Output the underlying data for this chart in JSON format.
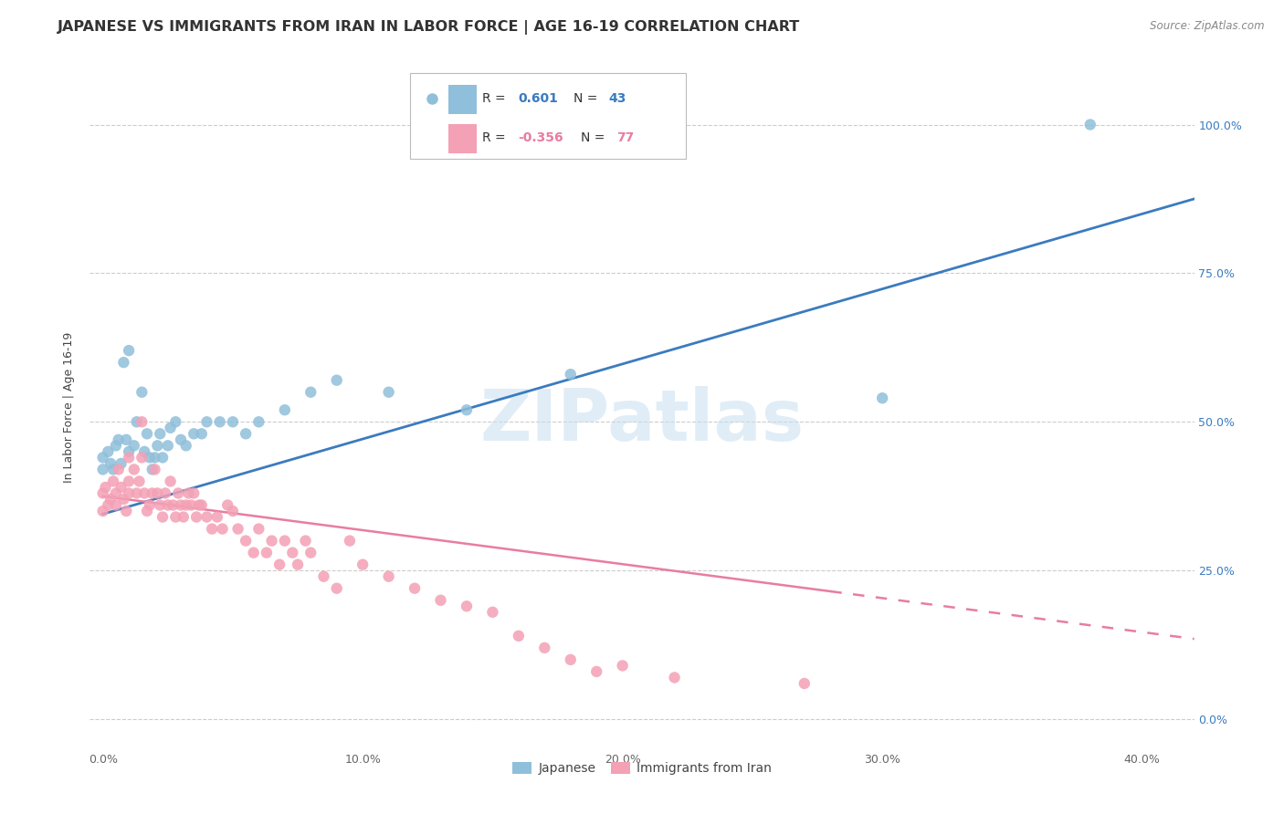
{
  "title": "JAPANESE VS IMMIGRANTS FROM IRAN IN LABOR FORCE | AGE 16-19 CORRELATION CHART",
  "source": "Source: ZipAtlas.com",
  "xlabel_ticks": [
    "0.0%",
    "10.0%",
    "20.0%",
    "30.0%",
    "40.0%"
  ],
  "xlabel_tick_vals": [
    0.0,
    0.1,
    0.2,
    0.3,
    0.4
  ],
  "ylabel": "In Labor Force | Age 16-19",
  "ylabel_ticks": [
    "0.0%",
    "25.0%",
    "50.0%",
    "75.0%",
    "100.0%"
  ],
  "ylabel_tick_vals": [
    0.0,
    0.25,
    0.5,
    0.75,
    1.0
  ],
  "xlim": [
    -0.005,
    0.42
  ],
  "ylim": [
    -0.05,
    1.1
  ],
  "blue_R": 0.601,
  "blue_N": 43,
  "pink_R": -0.356,
  "pink_N": 77,
  "blue_color": "#8fbfda",
  "pink_color": "#f4a0b5",
  "blue_line_color": "#3b7bbf",
  "pink_line_color": "#e87da0",
  "watermark": "ZIPatlas",
  "legend_label_blue": "Japanese",
  "legend_label_pink": "Immigrants from Iran",
  "blue_line_x0": 0.0,
  "blue_line_y0": 0.345,
  "blue_line_x1": 0.42,
  "blue_line_y1": 0.875,
  "pink_line_x0": 0.0,
  "pink_line_y0": 0.375,
  "pink_line_x1_solid": 0.28,
  "pink_line_y1_solid": 0.215,
  "pink_line_x1_dash": 0.42,
  "pink_line_y1_dash": 0.12,
  "grid_color": "#cccccc",
  "background_color": "#ffffff",
  "title_fontsize": 11.5,
  "axis_label_fontsize": 9,
  "tick_fontsize": 9,
  "blue_scatter_x": [
    0.0,
    0.0,
    0.002,
    0.003,
    0.004,
    0.005,
    0.006,
    0.007,
    0.008,
    0.009,
    0.01,
    0.01,
    0.012,
    0.013,
    0.015,
    0.016,
    0.017,
    0.018,
    0.019,
    0.02,
    0.021,
    0.022,
    0.023,
    0.025,
    0.026,
    0.028,
    0.03,
    0.032,
    0.035,
    0.038,
    0.04,
    0.045,
    0.05,
    0.055,
    0.06,
    0.07,
    0.08,
    0.09,
    0.11,
    0.14,
    0.18,
    0.3,
    0.38
  ],
  "blue_scatter_y": [
    0.44,
    0.42,
    0.45,
    0.43,
    0.42,
    0.46,
    0.47,
    0.43,
    0.6,
    0.47,
    0.62,
    0.45,
    0.46,
    0.5,
    0.55,
    0.45,
    0.48,
    0.44,
    0.42,
    0.44,
    0.46,
    0.48,
    0.44,
    0.46,
    0.49,
    0.5,
    0.47,
    0.46,
    0.48,
    0.48,
    0.5,
    0.5,
    0.5,
    0.48,
    0.5,
    0.52,
    0.55,
    0.57,
    0.55,
    0.52,
    0.58,
    0.54,
    1.0
  ],
  "pink_scatter_x": [
    0.0,
    0.0,
    0.001,
    0.002,
    0.003,
    0.004,
    0.005,
    0.005,
    0.006,
    0.007,
    0.008,
    0.009,
    0.01,
    0.01,
    0.01,
    0.012,
    0.013,
    0.014,
    0.015,
    0.015,
    0.016,
    0.017,
    0.018,
    0.019,
    0.02,
    0.021,
    0.022,
    0.023,
    0.024,
    0.025,
    0.026,
    0.027,
    0.028,
    0.029,
    0.03,
    0.031,
    0.032,
    0.033,
    0.034,
    0.035,
    0.036,
    0.037,
    0.038,
    0.04,
    0.042,
    0.044,
    0.046,
    0.048,
    0.05,
    0.052,
    0.055,
    0.058,
    0.06,
    0.063,
    0.065,
    0.068,
    0.07,
    0.073,
    0.075,
    0.078,
    0.08,
    0.085,
    0.09,
    0.095,
    0.1,
    0.11,
    0.12,
    0.13,
    0.14,
    0.15,
    0.16,
    0.17,
    0.18,
    0.19,
    0.2,
    0.22,
    0.27
  ],
  "pink_scatter_y": [
    0.38,
    0.35,
    0.39,
    0.36,
    0.37,
    0.4,
    0.38,
    0.36,
    0.42,
    0.39,
    0.37,
    0.35,
    0.44,
    0.4,
    0.38,
    0.42,
    0.38,
    0.4,
    0.5,
    0.44,
    0.38,
    0.35,
    0.36,
    0.38,
    0.42,
    0.38,
    0.36,
    0.34,
    0.38,
    0.36,
    0.4,
    0.36,
    0.34,
    0.38,
    0.36,
    0.34,
    0.36,
    0.38,
    0.36,
    0.38,
    0.34,
    0.36,
    0.36,
    0.34,
    0.32,
    0.34,
    0.32,
    0.36,
    0.35,
    0.32,
    0.3,
    0.28,
    0.32,
    0.28,
    0.3,
    0.26,
    0.3,
    0.28,
    0.26,
    0.3,
    0.28,
    0.24,
    0.22,
    0.3,
    0.26,
    0.24,
    0.22,
    0.2,
    0.19,
    0.18,
    0.14,
    0.12,
    0.1,
    0.08,
    0.09,
    0.07,
    0.06
  ]
}
